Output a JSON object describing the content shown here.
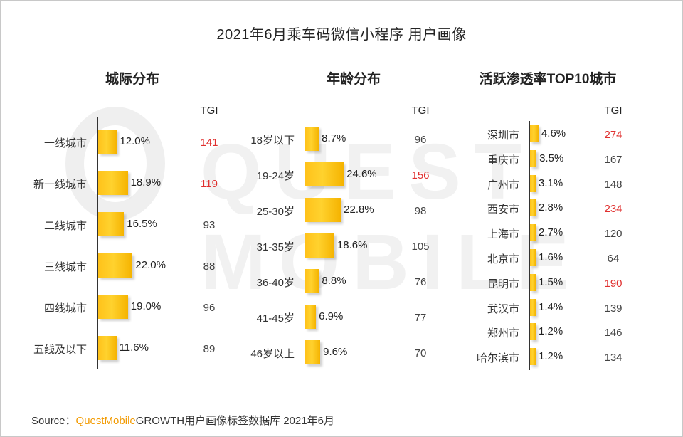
{
  "title": "2021年6月乘车码微信小程序 用户画像",
  "source": {
    "prefix": "Source：",
    "brand": "QuestMobile",
    "suffix": "GROWTH用户画像标签数据库 2021年6月"
  },
  "watermark": "QUEST MOBILE",
  "tgi_label": "TGI",
  "colors": {
    "bar": "#ffc21a",
    "highlight": "#e0302f"
  },
  "chart_data": [
    {
      "type": "bar",
      "orientation": "horizontal",
      "title": "城际分布",
      "categories": [
        "一线城市",
        "新一线城市",
        "二线城市",
        "三线城市",
        "四线城市",
        "五线及以下"
      ],
      "values": [
        12.0,
        18.9,
        16.5,
        22.0,
        19.0,
        11.6
      ],
      "value_labels": [
        "12.0%",
        "18.9%",
        "16.5%",
        "22.0%",
        "19.0%",
        "11.6%"
      ],
      "tgi": [
        141,
        119,
        93,
        88,
        96,
        89
      ],
      "tgi_highlight": [
        true,
        true,
        false,
        false,
        false,
        false
      ]
    },
    {
      "type": "bar",
      "orientation": "horizontal",
      "title": "年龄分布",
      "categories": [
        "18岁以下",
        "19-24岁",
        "25-30岁",
        "31-35岁",
        "36-40岁",
        "41-45岁",
        "46岁以上"
      ],
      "values": [
        8.7,
        24.6,
        22.8,
        18.6,
        8.8,
        6.9,
        9.6
      ],
      "value_labels": [
        "8.7%",
        "24.6%",
        "22.8%",
        "18.6%",
        "8.8%",
        "6.9%",
        "9.6%"
      ],
      "tgi": [
        96,
        156,
        98,
        105,
        76,
        77,
        70
      ],
      "tgi_highlight": [
        false,
        true,
        false,
        false,
        false,
        false,
        false
      ]
    },
    {
      "type": "bar",
      "orientation": "horizontal",
      "title": "活跃渗透率TOP10城市",
      "categories": [
        "深圳市",
        "重庆市",
        "广州市",
        "西安市",
        "上海市",
        "北京市",
        "昆明市",
        "武汉市",
        "郑州市",
        "哈尔滨市"
      ],
      "values": [
        4.6,
        3.5,
        3.1,
        2.8,
        2.7,
        1.6,
        1.5,
        1.4,
        1.2,
        1.2
      ],
      "value_labels": [
        "4.6%",
        "3.5%",
        "3.1%",
        "2.8%",
        "2.7%",
        "1.6%",
        "1.5%",
        "1.4%",
        "1.2%",
        "1.2%"
      ],
      "tgi": [
        274,
        167,
        148,
        234,
        120,
        64,
        190,
        139,
        146,
        134
      ],
      "tgi_highlight": [
        true,
        false,
        false,
        true,
        false,
        false,
        true,
        false,
        false,
        false
      ]
    }
  ]
}
